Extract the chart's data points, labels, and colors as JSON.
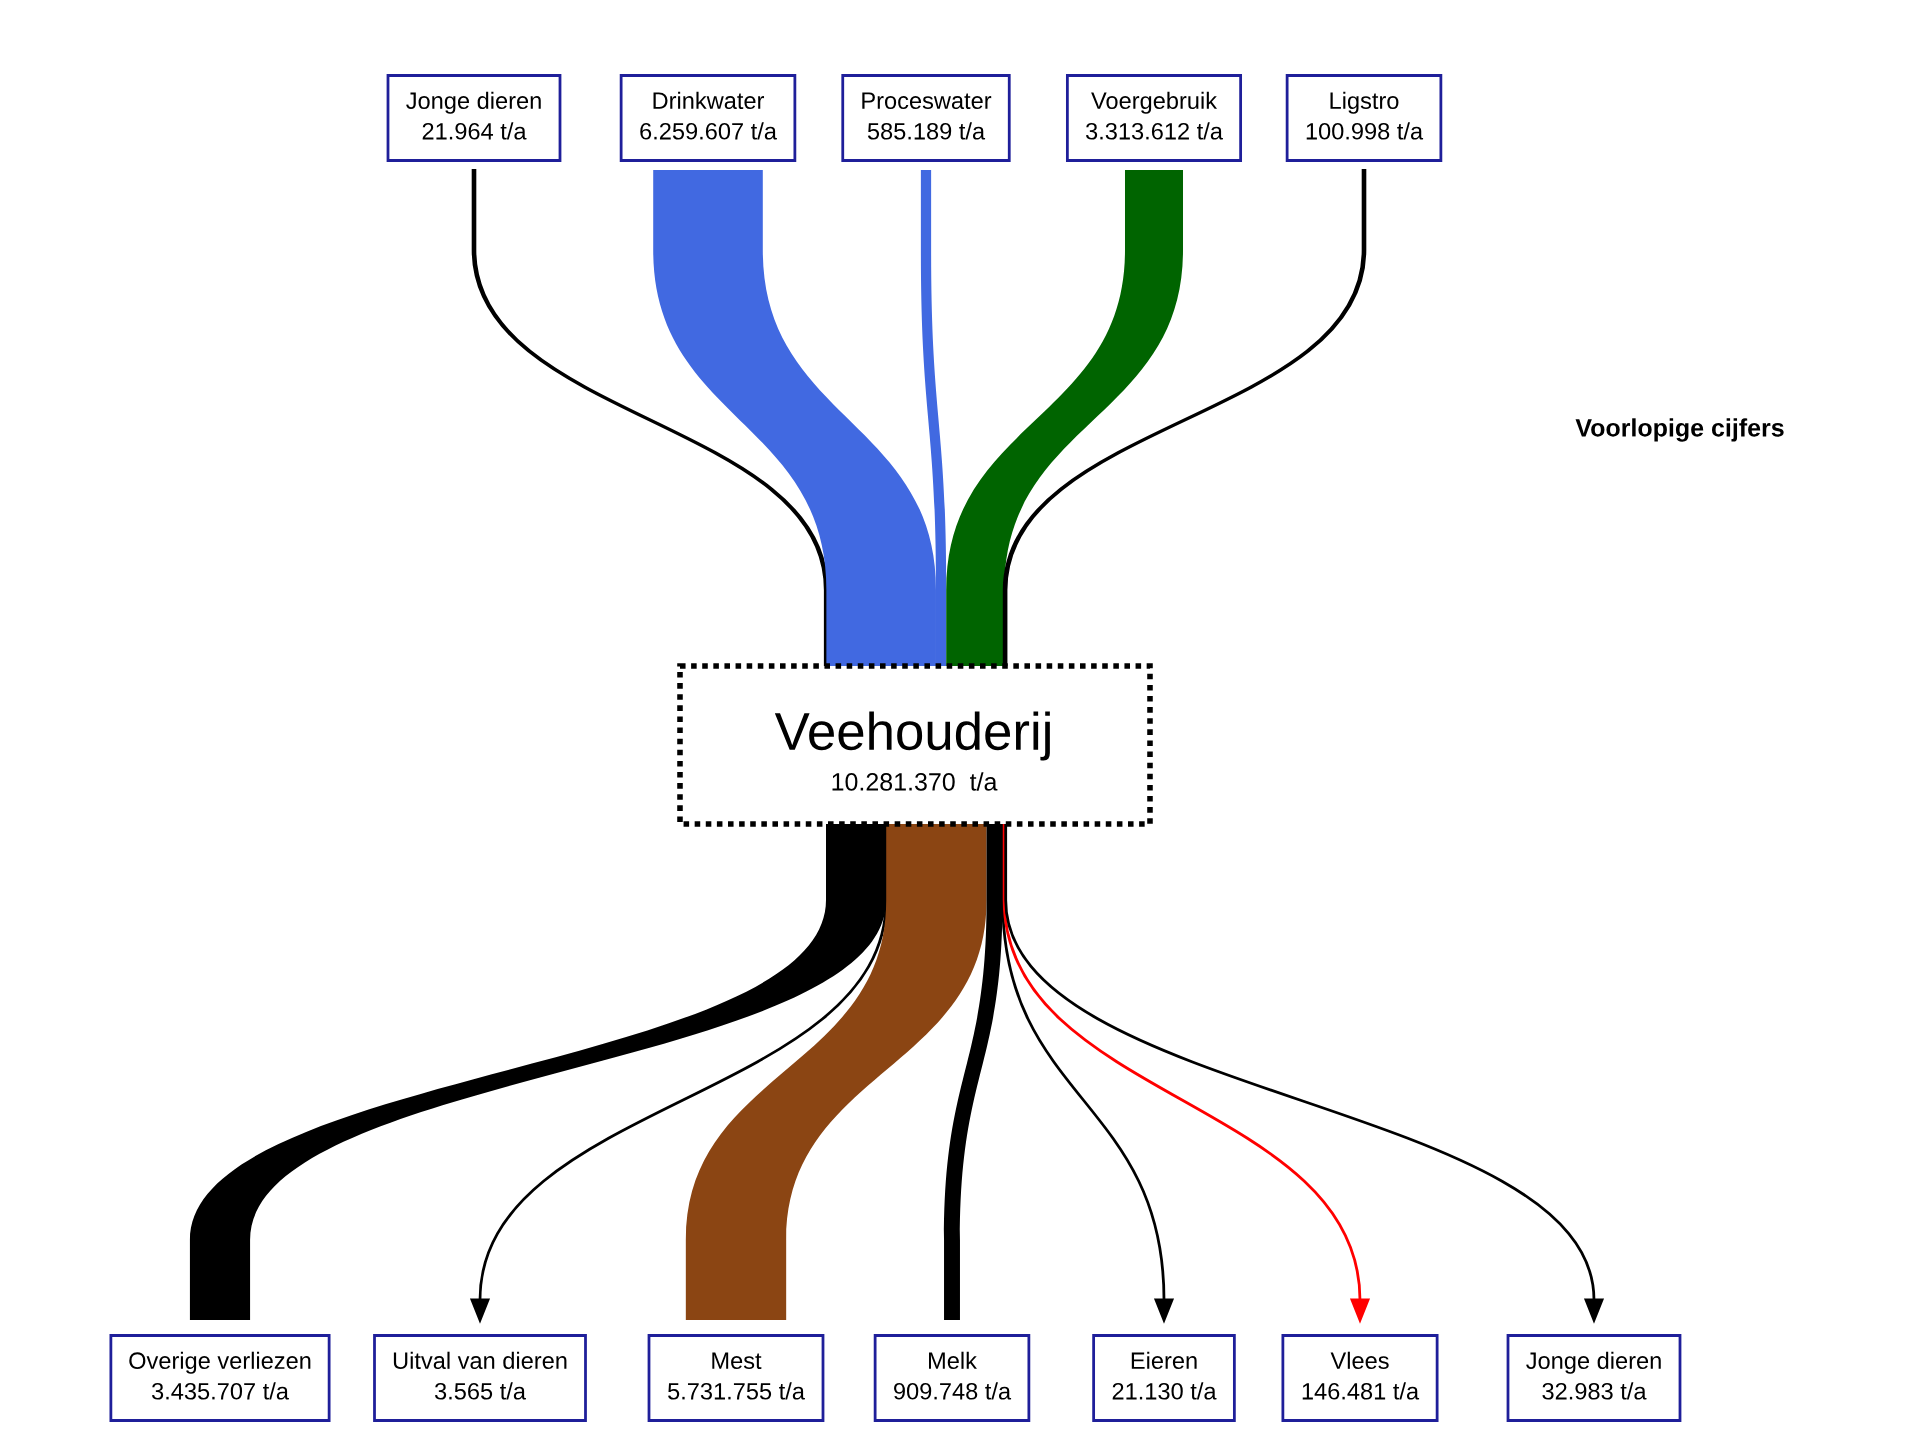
{
  "chart_data": {
    "type": "other",
    "title": "Veehouderij",
    "subtitle": "10.281.370  t/a",
    "annotations": [
      "Voorlopige cijfers"
    ],
    "categories": [
      "Jonge dieren",
      "Drinkwater",
      "Proceswater",
      "Voergebruik",
      "Ligstro",
      "Overige verliezen",
      "Uitval van dieren",
      "Mest",
      "Melk",
      "Eieren",
      "Vlees",
      "Jonge dieren"
    ],
    "series": [
      {
        "values": [
          21964,
          6259607,
          585189,
          3313612,
          100998,
          null,
          null,
          null,
          null,
          null,
          null,
          null
        ],
        "value_labels": [
          "21.964 t/a",
          "6.259.607 t/a",
          "585.189 t/a",
          "3.313.612 t/a",
          "100.998 t/a",
          null,
          null,
          null,
          null,
          null,
          null,
          null
        ],
        "colors": [
          "#000000",
          "#4169e1",
          "#4169e1",
          "#006400",
          "#000000",
          null,
          null,
          null,
          null,
          null,
          null,
          null
        ]
      },
      {
        "values": [
          null,
          null,
          null,
          null,
          null,
          3435707,
          3565,
          5731755,
          909748,
          21130,
          146481,
          32983
        ],
        "value_labels": [
          null,
          null,
          null,
          null,
          null,
          "3.435.707 t/a",
          "3.565 t/a",
          "5.731.755 t/a",
          "909.748 t/a",
          "21.130 t/a",
          "146.481 t/a",
          "32.983 t/a"
        ],
        "colors": [
          null,
          null,
          null,
          null,
          null,
          "#000000",
          "#000000",
          "#8b4513",
          "#000000",
          "#000000",
          "#ff0000",
          "#000000"
        ]
      }
    ]
  }
}
